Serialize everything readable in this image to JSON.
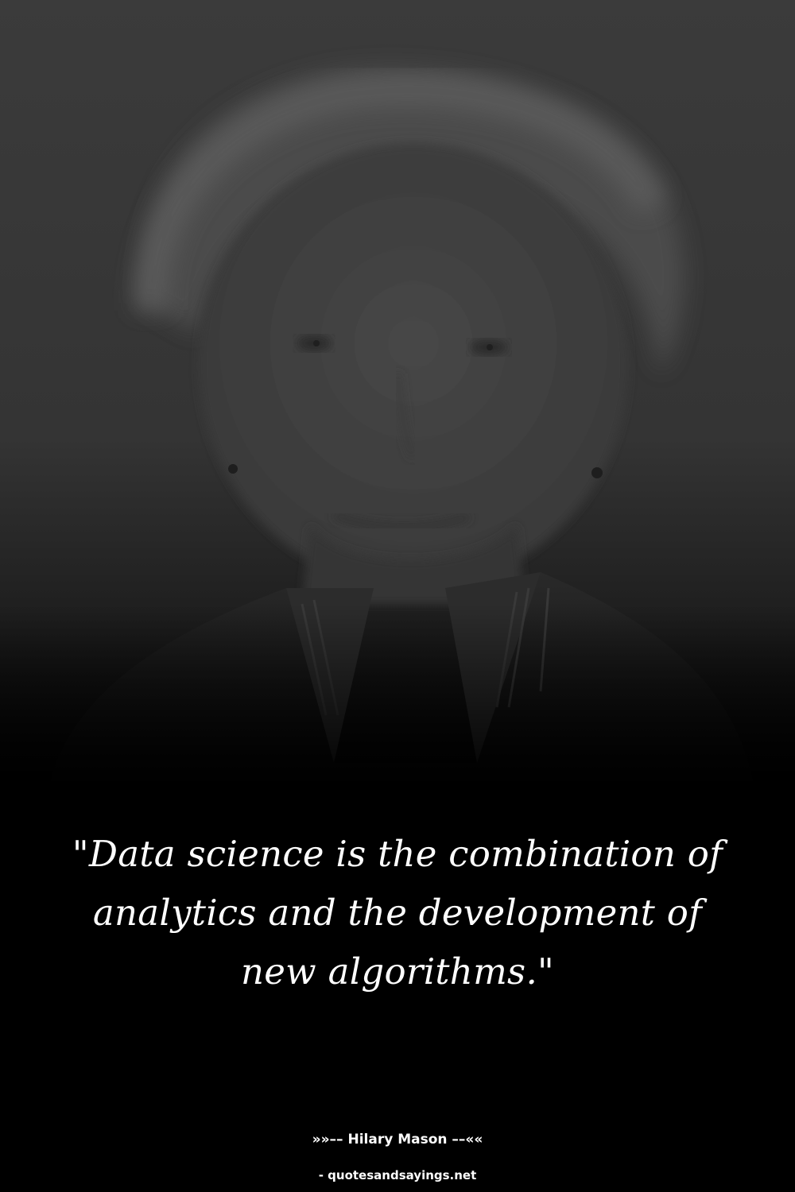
{
  "quote": {
    "text": "\"Data science is the combination of analytics and the development of new algorithms.\""
  },
  "attribution": {
    "text": "»»–– Hilary Mason ––««"
  },
  "source": {
    "text": "- quotesandsayings.net"
  },
  "photo": {
    "subject": "portrait-photo",
    "tone": "grayscale"
  },
  "colors": {
    "background": "#000000",
    "text": "#ffffff",
    "photo_base": "#3a3a3a"
  }
}
